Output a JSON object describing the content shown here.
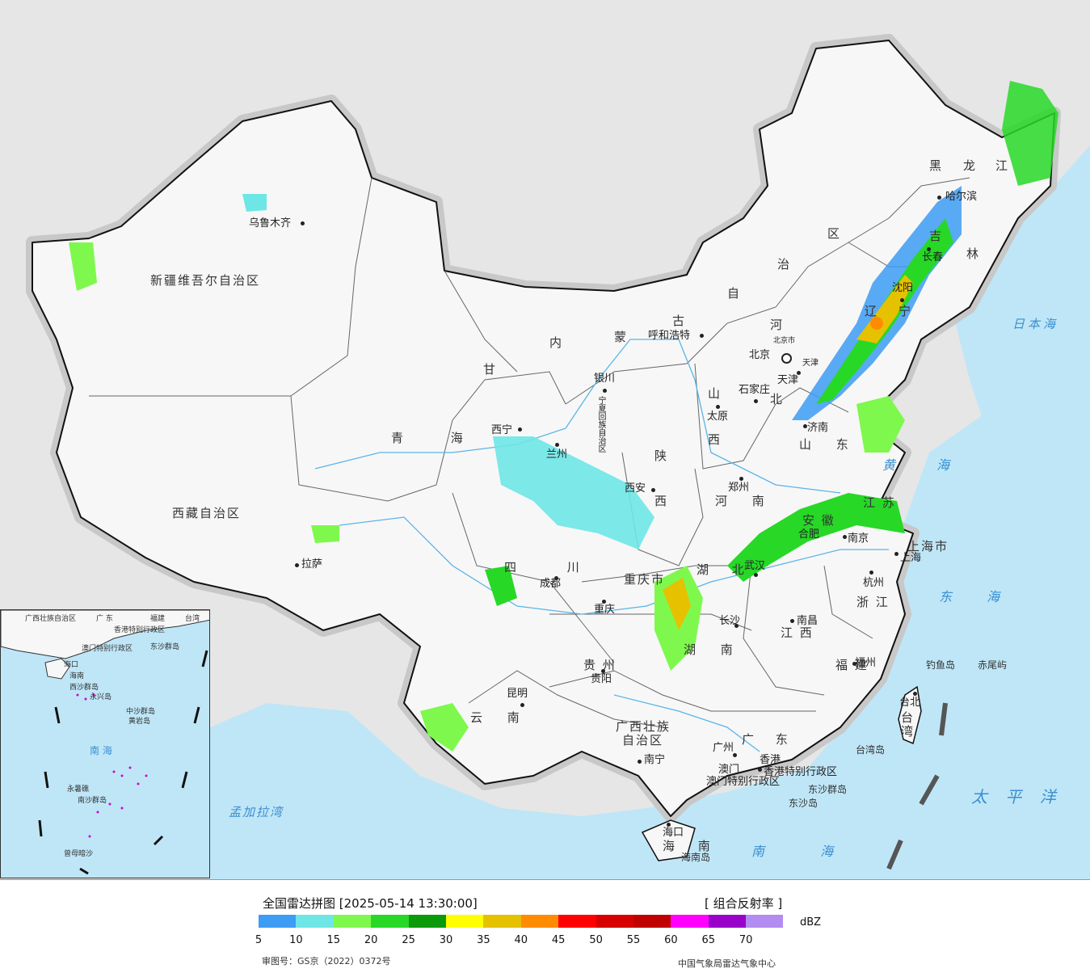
{
  "map": {
    "provinces": [
      {
        "id": "xinjiang",
        "label": "新疆维吾尔自治区"
      },
      {
        "id": "xizang",
        "label": "西藏自治区"
      },
      {
        "id": "qinghai",
        "label": "青 海"
      },
      {
        "id": "gansu",
        "label": "甘"
      },
      {
        "id": "neimenggu-1",
        "label": "内"
      },
      {
        "id": "neimenggu-2",
        "label": "蒙"
      },
      {
        "id": "neimenggu-3",
        "label": "古"
      },
      {
        "id": "neimenggu-4",
        "label": "自"
      },
      {
        "id": "neimenggu-5",
        "label": "治"
      },
      {
        "id": "neimenggu-6",
        "label": "区"
      },
      {
        "id": "heilongjiang-1",
        "label": "黑"
      },
      {
        "id": "heilongjiang-2",
        "label": "龙"
      },
      {
        "id": "heilongjiang-3",
        "label": "江"
      },
      {
        "id": "jilin-1",
        "label": "吉"
      },
      {
        "id": "jilin-2",
        "label": "林"
      },
      {
        "id": "liaoning-1",
        "label": "辽"
      },
      {
        "id": "liaoning-2",
        "label": "宁"
      },
      {
        "id": "hebei-1",
        "label": "河"
      },
      {
        "id": "hebei-2",
        "label": "北"
      },
      {
        "id": "shanxi-1",
        "label": "山"
      },
      {
        "id": "shanxi-2",
        "label": "西"
      },
      {
        "id": "shandong",
        "label": "山 东"
      },
      {
        "id": "shaanxi-1",
        "label": "陕"
      },
      {
        "id": "shaanxi-2",
        "label": "西"
      },
      {
        "id": "henan",
        "label": "河 南"
      },
      {
        "id": "sichuan",
        "label": "四 川"
      },
      {
        "id": "chongqing",
        "label": "重庆市"
      },
      {
        "id": "hubei",
        "label": "湖 北"
      },
      {
        "id": "hunan",
        "label": "湖 南"
      },
      {
        "id": "anhui",
        "label": "安 徽"
      },
      {
        "id": "jiangsu",
        "label": "江 苏"
      },
      {
        "id": "shanghai",
        "label": "上海市"
      },
      {
        "id": "zhejiang",
        "label": "浙 江"
      },
      {
        "id": "jiangxi",
        "label": "江 西"
      },
      {
        "id": "fujian",
        "label": "福 建"
      },
      {
        "id": "guizhou",
        "label": "贵 州"
      },
      {
        "id": "yunnan",
        "label": "云 南"
      },
      {
        "id": "guangxi-1",
        "label": "广西壮族"
      },
      {
        "id": "guangxi-2",
        "label": "自治区"
      },
      {
        "id": "guangdong",
        "label": "广 东"
      },
      {
        "id": "hainan",
        "label": "海 南"
      },
      {
        "id": "taiwan",
        "label": "台湾"
      },
      {
        "id": "ningxia",
        "label": "宁夏回族自治区"
      },
      {
        "id": "hongkong",
        "label": "香港特别行政区"
      },
      {
        "id": "macau",
        "label": "澳门特别行政区"
      }
    ],
    "cities": [
      {
        "id": "urumqi",
        "label": "乌鲁木齐"
      },
      {
        "id": "lhasa",
        "label": "拉萨"
      },
      {
        "id": "xining",
        "label": "西宁"
      },
      {
        "id": "lanzhou",
        "label": "兰州"
      },
      {
        "id": "yinchuan",
        "label": "银川"
      },
      {
        "id": "hohhot",
        "label": "呼和浩特"
      },
      {
        "id": "beijing",
        "label": "北京"
      },
      {
        "id": "beijing-city",
        "label": "北京市"
      },
      {
        "id": "tianjin",
        "label": "天津"
      },
      {
        "id": "tianjin-city",
        "label": "天津"
      },
      {
        "id": "shijiazhuang",
        "label": "石家庄"
      },
      {
        "id": "taiyuan",
        "label": "太原"
      },
      {
        "id": "jinan",
        "label": "济南"
      },
      {
        "id": "zhengzhou",
        "label": "郑州"
      },
      {
        "id": "xian",
        "label": "西安"
      },
      {
        "id": "chengdu",
        "label": "成都"
      },
      {
        "id": "chongqing-city",
        "label": "重庆"
      },
      {
        "id": "wuhan",
        "label": "武汉"
      },
      {
        "id": "hefei",
        "label": "合肥"
      },
      {
        "id": "nanjing",
        "label": "南京"
      },
      {
        "id": "shanghai-city",
        "label": "上海"
      },
      {
        "id": "hangzhou",
        "label": "杭州"
      },
      {
        "id": "nanchang",
        "label": "南昌"
      },
      {
        "id": "changsha",
        "label": "长沙"
      },
      {
        "id": "fuzhou",
        "label": "福州"
      },
      {
        "id": "taipei",
        "label": "台北"
      },
      {
        "id": "guiyang",
        "label": "贵阳"
      },
      {
        "id": "kunming",
        "label": "昆明"
      },
      {
        "id": "nanning",
        "label": "南宁"
      },
      {
        "id": "guangzhou",
        "label": "广州"
      },
      {
        "id": "hongkong-city",
        "label": "香港"
      },
      {
        "id": "macau-city",
        "label": "澳门"
      },
      {
        "id": "haikou",
        "label": "海口"
      },
      {
        "id": "harbin",
        "label": "哈尔滨"
      },
      {
        "id": "changchun",
        "label": "长春"
      },
      {
        "id": "shenyang",
        "label": "沈阳"
      }
    ],
    "seas": [
      {
        "id": "japan-sea",
        "label": "日本海"
      },
      {
        "id": "yellow-sea",
        "label": "黄 海"
      },
      {
        "id": "east-sea",
        "label": "东 海"
      },
      {
        "id": "pacific",
        "label": "太 平 洋"
      },
      {
        "id": "south-sea",
        "label": "南 海"
      },
      {
        "id": "bengal",
        "label": "孟加拉湾"
      }
    ],
    "islands": [
      {
        "id": "diaoyu",
        "label": "钓鱼岛"
      },
      {
        "id": "chiwei",
        "label": "赤尾屿"
      },
      {
        "id": "taiwan-island",
        "label": "台湾岛"
      },
      {
        "id": "dongsha-islands",
        "label": "东沙群岛"
      },
      {
        "id": "dongsha-island",
        "label": "东沙岛"
      },
      {
        "id": "hainan-island",
        "label": "海南岛"
      }
    ]
  },
  "inset": {
    "labels": [
      {
        "id": "i-guangxi",
        "label": "广西壮族自治区"
      },
      {
        "id": "i-guangdong",
        "label": "广 东"
      },
      {
        "id": "i-fujian",
        "label": "福建"
      },
      {
        "id": "i-taiwan",
        "label": "台湾"
      },
      {
        "id": "i-hk",
        "label": "香港特别行政区"
      },
      {
        "id": "i-macau",
        "label": "澳门特别行政区"
      },
      {
        "id": "i-dongsha",
        "label": "东沙群岛"
      },
      {
        "id": "i-haikou",
        "label": "海口"
      },
      {
        "id": "i-hainan",
        "label": "海南"
      },
      {
        "id": "i-xisha",
        "label": "西沙群岛"
      },
      {
        "id": "i-yongxing",
        "label": "永兴岛"
      },
      {
        "id": "i-zhongsha",
        "label": "中沙群岛"
      },
      {
        "id": "i-huangyan",
        "label": "黄岩岛"
      },
      {
        "id": "i-south-sea",
        "label": "南 海"
      },
      {
        "id": "i-yongshu",
        "label": "永暑礁"
      },
      {
        "id": "i-nansha",
        "label": "南沙群岛"
      },
      {
        "id": "i-zengmu",
        "label": "曾母暗沙"
      }
    ]
  },
  "legend": {
    "title": "全国雷达拼图 [2025-05-14 13:30:00]",
    "product": "[ 组合反射率 ]",
    "unit": "dBZ",
    "ticks": [
      "5",
      "10",
      "15",
      "20",
      "25",
      "30",
      "35",
      "40",
      "45",
      "50",
      "55",
      "60",
      "65",
      "70"
    ],
    "colors": [
      "#3d9cf3",
      "#6ee6e6",
      "#7ff84d",
      "#27d827",
      "#0a9a0a",
      "#ffff00",
      "#e6c100",
      "#ff8c00",
      "#ff0000",
      "#d60000",
      "#c00000",
      "#ff00ff",
      "#9900c8",
      "#b28cf0"
    ],
    "review_no": "审图号：GS京（2022）0372号",
    "org": "中国气象局雷达气象中心"
  },
  "colors": {
    "ocean": "#bfe6f7",
    "land": "#f7f7f7",
    "outside": "#e6e6e6",
    "border": "#111111"
  }
}
